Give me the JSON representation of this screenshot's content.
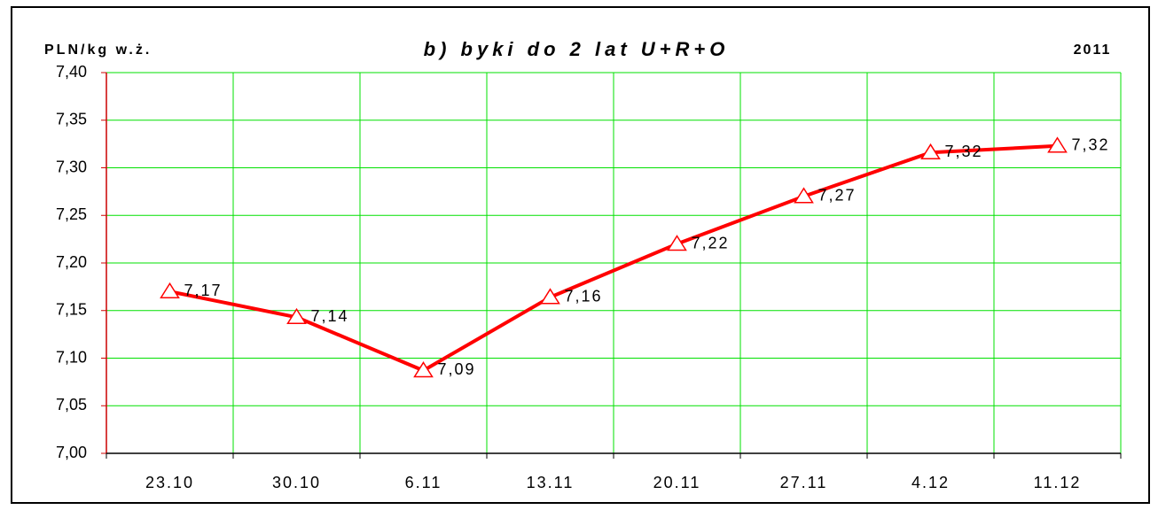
{
  "chart_data": {
    "type": "line",
    "title": "b) byki do 2 lat U+R+O",
    "y_label": "PLN/kg w.ż.",
    "annotation": "2011",
    "categories": [
      "23.10",
      "30.10",
      "6.11",
      "13.11",
      "20.11",
      "27.11",
      "4.12",
      "11.12"
    ],
    "series": [
      {
        "name": "b) byki do 2 lat U+R+O",
        "color": "#ff0000",
        "values": [
          7.17,
          7.143,
          7.087,
          7.164,
          7.22,
          7.27,
          7.316,
          7.323
        ],
        "value_labels": [
          "7,17",
          "7,14",
          "7,09",
          "7,16",
          "7,22",
          "7,27",
          "7,32",
          "7,32"
        ]
      }
    ],
    "ylim": [
      7.0,
      7.4
    ],
    "yticks": [
      {
        "value": 7.0,
        "label": "7,00"
      },
      {
        "value": 7.05,
        "label": "7,05"
      },
      {
        "value": 7.1,
        "label": "7,10"
      },
      {
        "value": 7.15,
        "label": "7,15"
      },
      {
        "value": 7.2,
        "label": "7,20"
      },
      {
        "value": 7.25,
        "label": "7,25"
      },
      {
        "value": 7.3,
        "label": "7,30"
      },
      {
        "value": 7.35,
        "label": "7,35"
      },
      {
        "value": 7.4,
        "label": "7,40"
      }
    ],
    "grid": true,
    "grid_color": "#00e000"
  }
}
